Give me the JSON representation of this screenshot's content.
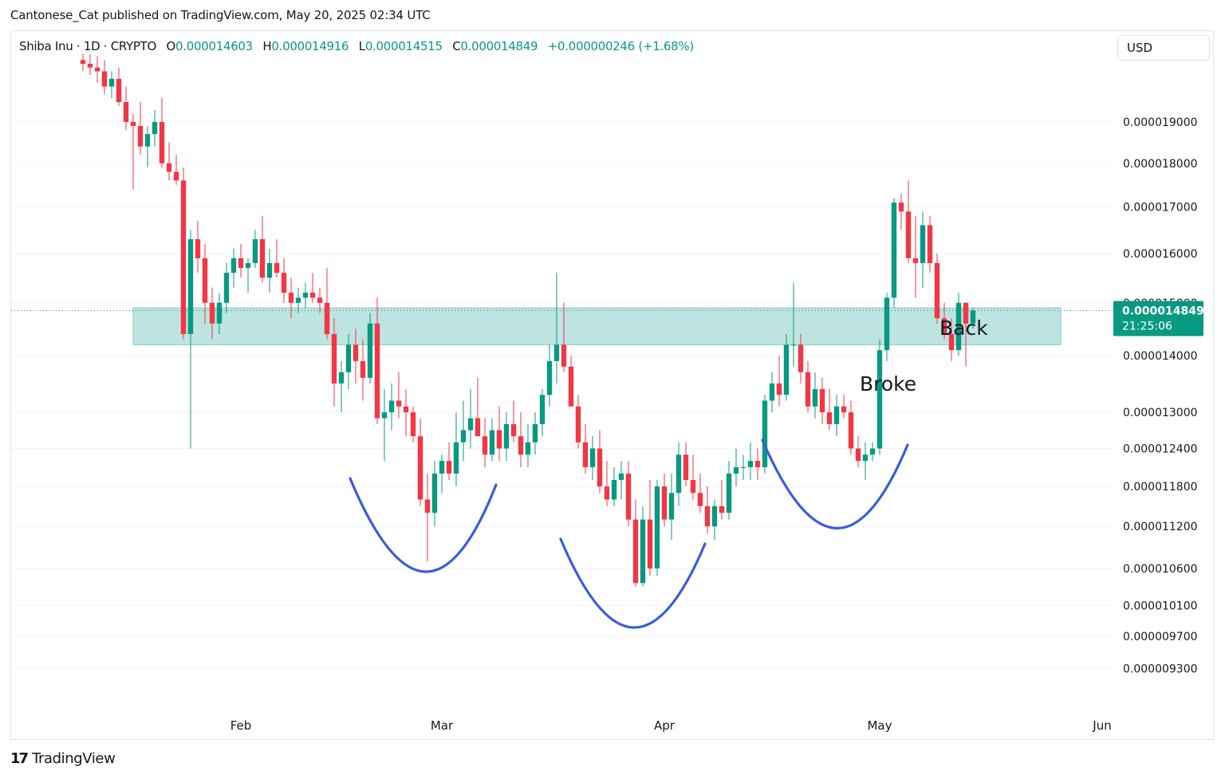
{
  "header": {
    "publish_text": "Cantonese_Cat published on TradingView.com, May 20, 2025 02:34 UTC"
  },
  "legend": {
    "symbol": "Shiba Inu · 1D · CRYPTO",
    "open_label": "O",
    "open": "0.000014603",
    "high_label": "H",
    "high": "0.000014916",
    "low_label": "L",
    "low": "0.000014515",
    "close_label": "C",
    "close": "0.000014849",
    "change": "+0.000000246 (+1.68%)"
  },
  "currency": "USD",
  "footer": {
    "logo_mark": "17",
    "logo_text": "TradingView"
  },
  "colors": {
    "up": "#089981",
    "down": "#f23645",
    "zone": "#b2dfdb",
    "arc": "#3b5bdb",
    "price_tag": "#089981",
    "grid": "#f0f3fa"
  },
  "chart_data": {
    "type": "candlestick",
    "scale": "log",
    "ylim": [
      9e-06,
      2.05e-05
    ],
    "y_ticks": [
      "0.000019000",
      "0.000018000",
      "0.000017000",
      "0.000016000",
      "0.000015000",
      "0.000014000",
      "0.000013000",
      "0.000012400",
      "0.000011800",
      "0.000011200",
      "0.000010600",
      "0.000010100",
      "0.000009700",
      "0.000009300"
    ],
    "x_ticks": [
      {
        "label": "Feb",
        "date": "2025-02-01"
      },
      {
        "label": "Mar",
        "date": "2025-03-01"
      },
      {
        "label": "Apr",
        "date": "2025-04-01"
      },
      {
        "label": "May",
        "date": "2025-05-01"
      },
      {
        "label": "Jun",
        "date": "2025-06-01"
      }
    ],
    "first_date": "2025-01-10",
    "ohlc": [
      [
        20.6,
        20.9,
        20.3,
        20.5
      ],
      [
        20.5,
        20.8,
        20.2,
        20.4
      ],
      [
        20.4,
        20.7,
        20.0,
        20.3
      ],
      [
        20.3,
        20.6,
        19.7,
        19.9
      ],
      [
        19.9,
        20.3,
        19.6,
        20.1
      ],
      [
        20.1,
        20.4,
        19.4,
        19.5
      ],
      [
        19.5,
        19.9,
        18.8,
        19.0
      ],
      [
        19.0,
        19.2,
        17.4,
        18.9
      ],
      [
        18.9,
        19.5,
        18.2,
        18.4
      ],
      [
        18.4,
        18.9,
        17.9,
        18.7
      ],
      [
        18.7,
        19.3,
        18.4,
        19.0
      ],
      [
        19.0,
        19.6,
        17.9,
        18.0
      ],
      [
        18.0,
        18.5,
        17.6,
        17.8
      ],
      [
        17.8,
        18.2,
        17.5,
        17.6
      ],
      [
        17.6,
        17.9,
        14.3,
        14.4
      ],
      [
        14.4,
        16.5,
        12.4,
        16.3
      ],
      [
        16.3,
        16.7,
        15.6,
        15.9
      ],
      [
        15.9,
        16.2,
        14.6,
        15.0
      ],
      [
        15.0,
        15.3,
        14.3,
        14.6
      ],
      [
        14.6,
        15.2,
        14.4,
        15.0
      ],
      [
        15.0,
        15.8,
        14.8,
        15.6
      ],
      [
        15.6,
        16.1,
        15.3,
        15.9
      ],
      [
        15.9,
        16.2,
        15.5,
        15.7
      ],
      [
        15.7,
        15.9,
        15.2,
        15.8
      ],
      [
        15.8,
        16.5,
        15.7,
        16.3
      ],
      [
        16.3,
        16.8,
        15.4,
        15.5
      ],
      [
        15.5,
        16.1,
        15.2,
        15.8
      ],
      [
        15.8,
        16.3,
        15.5,
        15.6
      ],
      [
        15.6,
        15.9,
        15.0,
        15.2
      ],
      [
        15.2,
        15.5,
        14.7,
        15.0
      ],
      [
        15.0,
        15.3,
        14.8,
        15.1
      ],
      [
        15.1,
        15.4,
        14.9,
        15.2
      ],
      [
        15.2,
        15.6,
        15.0,
        15.1
      ],
      [
        15.1,
        15.3,
        14.8,
        15.0
      ],
      [
        15.0,
        15.7,
        14.3,
        14.4
      ],
      [
        14.4,
        14.7,
        13.1,
        13.5
      ],
      [
        13.5,
        13.9,
        13.0,
        13.7
      ],
      [
        13.7,
        14.4,
        13.4,
        14.2
      ],
      [
        14.2,
        14.5,
        13.5,
        13.9
      ],
      [
        13.9,
        14.3,
        13.2,
        13.6
      ],
      [
        13.6,
        14.8,
        13.5,
        14.6
      ],
      [
        14.6,
        15.1,
        12.8,
        12.9
      ],
      [
        12.9,
        13.4,
        12.2,
        13.0
      ],
      [
        13.0,
        13.5,
        12.7,
        13.2
      ],
      [
        13.2,
        13.7,
        12.9,
        13.1
      ],
      [
        13.1,
        13.4,
        12.6,
        13.0
      ],
      [
        13.0,
        13.1,
        12.5,
        12.6
      ],
      [
        12.6,
        12.9,
        11.5,
        11.6
      ],
      [
        11.6,
        12.0,
        10.7,
        11.4
      ],
      [
        11.4,
        12.2,
        11.2,
        12.0
      ],
      [
        12.0,
        12.3,
        11.7,
        12.2
      ],
      [
        12.2,
        12.5,
        11.9,
        12.0
      ],
      [
        12.0,
        13.0,
        11.8,
        12.5
      ],
      [
        12.5,
        13.2,
        12.2,
        12.7
      ],
      [
        12.7,
        13.4,
        12.4,
        12.9
      ],
      [
        12.9,
        13.6,
        12.6,
        12.6
      ],
      [
        12.6,
        12.9,
        12.1,
        12.3
      ],
      [
        12.3,
        12.9,
        12.2,
        12.7
      ],
      [
        12.7,
        13.1,
        12.2,
        12.4
      ],
      [
        12.4,
        13.0,
        12.2,
        12.8
      ],
      [
        12.8,
        13.2,
        12.5,
        12.6
      ],
      [
        12.6,
        13.0,
        12.1,
        12.3
      ],
      [
        12.3,
        12.8,
        12.1,
        12.5
      ],
      [
        12.5,
        13.0,
        12.3,
        12.8
      ],
      [
        12.8,
        13.4,
        12.6,
        13.3
      ],
      [
        13.3,
        14.2,
        13.1,
        13.9
      ],
      [
        13.9,
        15.6,
        13.5,
        14.2
      ],
      [
        14.2,
        15.0,
        13.7,
        13.8
      ],
      [
        13.8,
        14.0,
        13.1,
        13.1
      ],
      [
        13.1,
        13.3,
        12.4,
        12.5
      ],
      [
        12.5,
        12.8,
        12.0,
        12.1
      ],
      [
        12.1,
        12.6,
        11.9,
        12.4
      ],
      [
        12.4,
        12.7,
        11.7,
        11.8
      ],
      [
        11.8,
        12.2,
        11.5,
        11.6
      ],
      [
        11.6,
        12.1,
        11.5,
        11.9
      ],
      [
        11.9,
        12.2,
        11.6,
        12.0
      ],
      [
        12.0,
        12.2,
        11.2,
        11.3
      ],
      [
        11.3,
        11.6,
        10.35,
        10.4
      ],
      [
        10.4,
        11.5,
        10.35,
        11.3
      ],
      [
        11.3,
        11.9,
        10.5,
        10.6
      ],
      [
        10.6,
        11.9,
        10.5,
        11.8
      ],
      [
        11.8,
        12.0,
        11.2,
        11.3
      ],
      [
        11.3,
        12.0,
        11.0,
        11.7
      ],
      [
        11.7,
        12.5,
        11.5,
        12.3
      ],
      [
        12.3,
        12.5,
        11.8,
        11.9
      ],
      [
        11.9,
        12.3,
        11.6,
        11.7
      ],
      [
        11.7,
        12.0,
        11.4,
        11.5
      ],
      [
        11.5,
        11.8,
        11.1,
        11.2
      ],
      [
        11.2,
        11.6,
        11.0,
        11.5
      ],
      [
        11.5,
        11.9,
        11.3,
        11.4
      ],
      [
        11.4,
        12.2,
        11.3,
        12.0
      ],
      [
        12.0,
        12.4,
        11.8,
        12.1
      ],
      [
        12.1,
        12.3,
        11.9,
        12.1
      ],
      [
        12.1,
        12.5,
        11.9,
        12.2
      ],
      [
        12.2,
        12.4,
        11.9,
        12.1
      ],
      [
        12.1,
        13.3,
        12.0,
        13.2
      ],
      [
        13.2,
        13.7,
        13.0,
        13.5
      ],
      [
        13.5,
        14.0,
        13.1,
        13.3
      ],
      [
        13.3,
        14.4,
        13.2,
        14.2
      ],
      [
        14.2,
        15.4,
        13.8,
        14.2
      ],
      [
        14.2,
        14.4,
        13.5,
        13.7
      ],
      [
        13.7,
        13.9,
        13.0,
        13.1
      ],
      [
        13.1,
        13.7,
        12.9,
        13.4
      ],
      [
        13.4,
        13.6,
        12.8,
        13.0
      ],
      [
        13.0,
        13.4,
        12.7,
        12.8
      ],
      [
        12.8,
        13.3,
        12.6,
        13.1
      ],
      [
        13.1,
        13.3,
        12.9,
        13.0
      ],
      [
        13.0,
        13.2,
        12.3,
        12.4
      ],
      [
        12.4,
        12.6,
        12.1,
        12.2
      ],
      [
        12.2,
        12.5,
        11.9,
        12.3
      ],
      [
        12.3,
        12.5,
        12.2,
        12.4
      ],
      [
        12.4,
        14.3,
        12.3,
        14.1
      ],
      [
        14.1,
        15.2,
        13.9,
        15.1
      ],
      [
        15.1,
        17.2,
        14.9,
        17.1
      ],
      [
        17.1,
        17.3,
        16.5,
        16.9
      ],
      [
        16.9,
        17.6,
        15.8,
        15.9
      ],
      [
        15.9,
        16.8,
        15.1,
        15.8
      ],
      [
        15.8,
        16.9,
        15.3,
        16.6
      ],
      [
        16.6,
        16.8,
        15.6,
        15.8
      ],
      [
        15.8,
        16.0,
        14.6,
        14.7
      ],
      [
        14.7,
        15.0,
        14.3,
        14.4
      ],
      [
        14.4,
        14.7,
        13.9,
        14.1
      ],
      [
        14.1,
        15.2,
        14.0,
        15.0
      ],
      [
        15.0,
        15.0,
        13.8,
        14.6
      ],
      [
        14.6,
        14.9,
        14.5,
        14.85
      ]
    ],
    "zone": {
      "low": 1.42e-05,
      "high": 1.49e-05
    },
    "current_price": "0.000014849",
    "countdown": "21:25:06",
    "annotations": [
      {
        "text": "Broke"
      },
      {
        "text": "Back"
      }
    ]
  }
}
